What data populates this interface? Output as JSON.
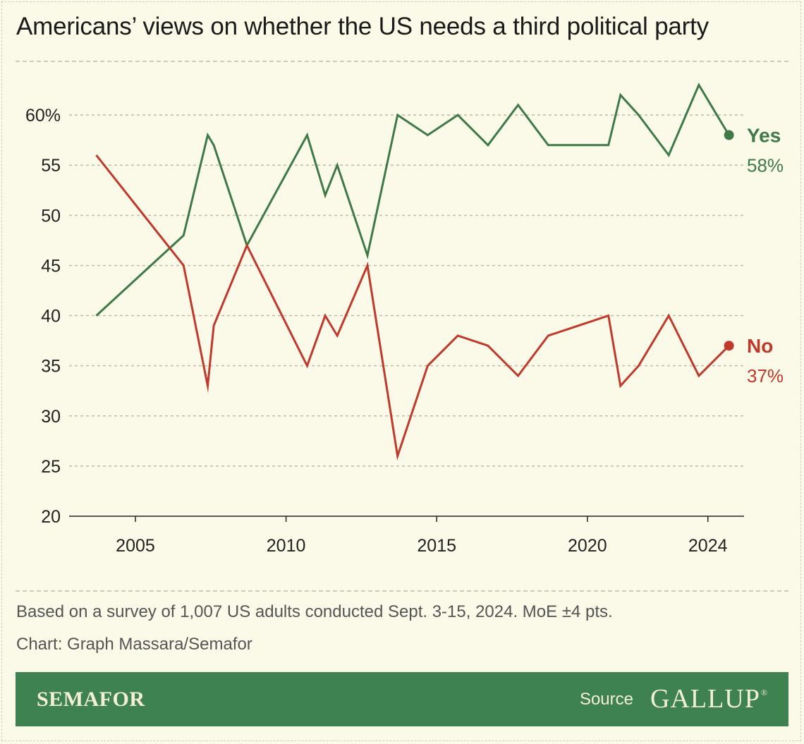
{
  "title": "Americans’ views on whether the US needs a third political party",
  "chart_data": {
    "type": "line",
    "title": "Americans’ views on whether the US needs a third political party",
    "xlabel": "",
    "ylabel": "",
    "ylim": [
      20,
      65
    ],
    "xlim": [
      2002.8,
      2025.2
    ],
    "yticks": [
      20,
      25,
      30,
      35,
      40,
      45,
      50,
      55,
      60
    ],
    "ytick_labels": [
      "20",
      "25",
      "30",
      "35",
      "40",
      "45",
      "50",
      "55",
      "60%"
    ],
    "xticks": [
      2005,
      2010,
      2015,
      2020,
      2024
    ],
    "xtick_labels": [
      "2005",
      "2010",
      "2015",
      "2020",
      "2024"
    ],
    "grid": true,
    "series": [
      {
        "name": "Yes",
        "color": "#3e7a48",
        "end_label": "Yes",
        "end_value_label": "58%",
        "x": [
          2003.7,
          2006.6,
          2007.4,
          2007.6,
          2008.7,
          2010.7,
          2011.3,
          2011.7,
          2012.7,
          2013.7,
          2014.7,
          2015.7,
          2016.7,
          2017.7,
          2018.7,
          2019.7,
          2020.7,
          2021.1,
          2021.7,
          2022.7,
          2023.7,
          2024.7
        ],
        "values": [
          40,
          48,
          58,
          57,
          47,
          58,
          52,
          55,
          46,
          60,
          58,
          60,
          57,
          61,
          57,
          57,
          57,
          62,
          60,
          56,
          63,
          58
        ]
      },
      {
        "name": "No",
        "color": "#c0392b",
        "end_label": "No",
        "end_value_label": "37%",
        "x": [
          2003.7,
          2006.6,
          2007.4,
          2007.6,
          2008.7,
          2010.7,
          2011.3,
          2011.7,
          2012.7,
          2013.7,
          2014.7,
          2015.7,
          2016.7,
          2017.7,
          2018.7,
          2019.7,
          2020.7,
          2021.1,
          2021.7,
          2022.7,
          2023.7,
          2024.7
        ],
        "values": [
          56,
          45,
          33,
          39,
          47,
          35,
          40,
          38,
          45,
          26,
          35,
          38,
          37,
          34,
          38,
          39,
          40,
          33,
          35,
          40,
          34,
          37
        ]
      }
    ]
  },
  "notes": {
    "survey": "Based on a survey of 1,007 US adults conducted Sept. 3-15, 2024. MoE ±4 pts.",
    "credit": "Chart: Graph Massara/Semafor"
  },
  "footer": {
    "brand": "SEMAFOR",
    "source_label": "Source",
    "source_name": "GALLUP",
    "source_mark": "®"
  },
  "colors": {
    "background": "#fbf9e8",
    "footer": "#3e8251",
    "yes": "#3e7a48",
    "no": "#c0392b"
  }
}
